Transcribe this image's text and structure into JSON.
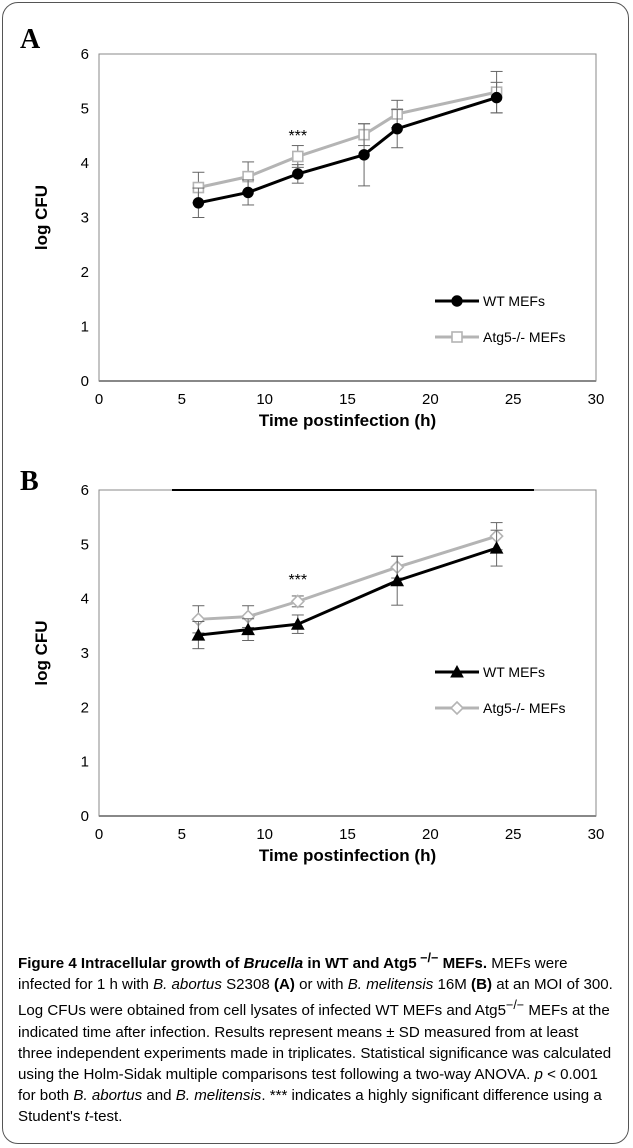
{
  "chart_data": [
    {
      "type": "line",
      "panel": "A",
      "x": [
        6,
        9,
        12,
        16,
        18,
        24
      ],
      "series": [
        {
          "name": "WT MEFs",
          "values": [
            3.27,
            3.46,
            3.8,
            4.15,
            4.63,
            5.2
          ],
          "errors": [
            0.27,
            0.23,
            0.17,
            0.57,
            0.35,
            0.28
          ],
          "color": "#000000",
          "marker": "circle"
        },
        {
          "name": "Atg5-/- MEFs",
          "values": [
            3.55,
            3.75,
            4.12,
            4.52,
            4.9,
            5.3
          ],
          "errors": [
            0.28,
            0.27,
            0.2,
            0.2,
            0.25,
            0.38
          ],
          "color": "#b4b4b4",
          "marker": "square"
        }
      ],
      "xlabel": "Time postinfection (h)",
      "ylabel": "log CFU",
      "xlim": [
        0,
        30
      ],
      "ylim": [
        0,
        6
      ],
      "xticks": [
        "0",
        "5",
        "10",
        "15",
        "20",
        "25",
        "30"
      ],
      "yticks": [
        "0",
        "1",
        "2",
        "3",
        "4",
        "5",
        "6"
      ],
      "annotations": [
        {
          "text": "***",
          "x": 12
        }
      ],
      "legend": "right-lower",
      "grid": false
    },
    {
      "type": "line",
      "panel": "B",
      "x": [
        6,
        9,
        12,
        18,
        24
      ],
      "series": [
        {
          "name": "WT MEFs",
          "values": [
            3.33,
            3.43,
            3.53,
            4.33,
            4.93
          ],
          "errors": [
            0.25,
            0.2,
            0.17,
            0.45,
            0.33
          ],
          "color": "#000000",
          "marker": "triangle"
        },
        {
          "name": "Atg5-/- MEFs",
          "values": [
            3.62,
            3.67,
            3.95,
            4.58,
            5.15
          ],
          "errors": [
            0.25,
            0.2,
            0.1,
            0.2,
            0.25
          ],
          "color": "#b4b4b4",
          "marker": "diamond"
        }
      ],
      "xlabel": "Time postinfection (h)",
      "ylabel": "log CFU",
      "xlim": [
        0,
        30
      ],
      "ylim": [
        0,
        6
      ],
      "xticks": [
        "0",
        "5",
        "10",
        "15",
        "20",
        "25",
        "30"
      ],
      "yticks": [
        "0",
        "1",
        "2",
        "3",
        "4",
        "5",
        "6"
      ],
      "annotations": [
        {
          "text": "***",
          "x": 12
        }
      ],
      "legend": "right-lower",
      "grid": false
    }
  ],
  "caption": {
    "fig_label": "Figure 4",
    "title_a": "Intracellular growth of ",
    "title_italic": "Brucella",
    "title_b": " in WT and Atg5",
    "title_sup": " −/−",
    "title_c": "MEFs.",
    "body": [
      {
        "t": " MEFs were infected for 1 h with "
      },
      {
        "t": "B. abortus",
        "i": true
      },
      {
        "t": " S2308 "
      },
      {
        "t": "(A)",
        "b": true
      },
      {
        "t": " or with "
      },
      {
        "t": "B. melitensis",
        "i": true
      },
      {
        "t": " 16M "
      },
      {
        "t": "(B)",
        "b": true
      },
      {
        "t": " at an MOI of 300. Log CFUs were obtained from cell lysates of infected WT MEFs and Atg5"
      },
      {
        "t": "−/−",
        "sup": true
      },
      {
        "t": " MEFs at the indicated time after infection. Results represent means ± SD measured from at least three independent experiments made in triplicates. Statistical significance was calculated using the Holm-Sidak multiple comparisons test following a two-way ANOVA. "
      },
      {
        "t": "p",
        "i": true
      },
      {
        "t": " < 0.001 for both "
      },
      {
        "t": "B. abortus",
        "i": true
      },
      {
        "t": " and "
      },
      {
        "t": "B. melitensis",
        "i": true
      },
      {
        "t": ". *** indicates a highly significant difference using a Student's "
      },
      {
        "t": "t",
        "i": true
      },
      {
        "t": "-test."
      }
    ]
  }
}
